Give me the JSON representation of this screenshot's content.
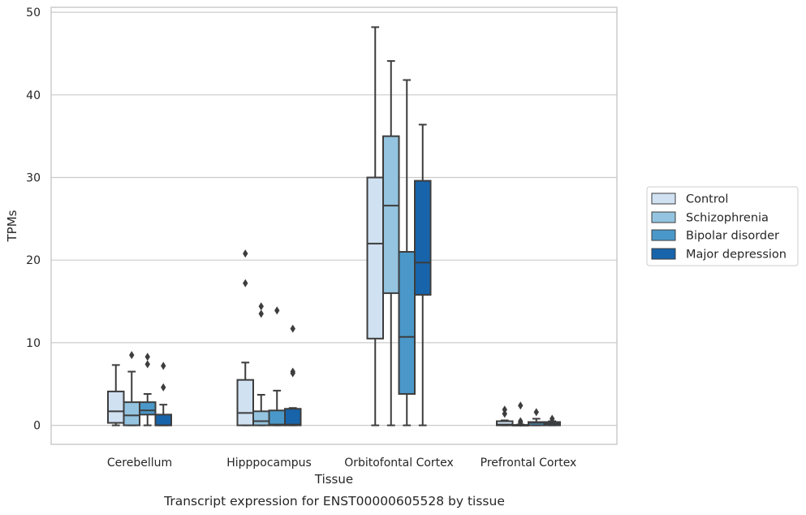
{
  "chart_data": {
    "type": "box",
    "caption": "Transcript expression for ENST00000605528 by tissue",
    "xlabel": "Tissue",
    "ylabel": "TPMs",
    "ylim": [
      -2.3,
      50.6
    ],
    "yticks": [
      0,
      10,
      20,
      30,
      40,
      50
    ],
    "grid": "horizontal",
    "legend_position": "right",
    "categories": [
      "Cerebellum",
      "Hipppocampus",
      "Orbitofontal Cortex",
      "Prefrontal Cortex"
    ],
    "series": [
      {
        "name": "Control",
        "color": "#d0e1f2",
        "boxes": [
          {
            "whislo": 0.0,
            "q1": 0.3,
            "med": 1.7,
            "q3": 4.1,
            "whishi": 7.3,
            "fliers": []
          },
          {
            "whislo": 0.0,
            "q1": 0.0,
            "med": 1.5,
            "q3": 5.5,
            "whishi": 7.6,
            "fliers": [
              17.2,
              20.8
            ]
          },
          {
            "whislo": 0.0,
            "q1": 10.5,
            "med": 22.0,
            "q3": 30.0,
            "whishi": 48.2,
            "fliers": []
          },
          {
            "whislo": 0.0,
            "q1": 0.0,
            "med": 0.1,
            "q3": 0.5,
            "whishi": 0.6,
            "fliers": [
              1.4,
              1.9
            ]
          }
        ]
      },
      {
        "name": "Schizophrenia",
        "color": "#94c4df",
        "boxes": [
          {
            "whislo": 0.0,
            "q1": 0.0,
            "med": 1.2,
            "q3": 2.8,
            "whishi": 6.5,
            "fliers": [
              8.5
            ]
          },
          {
            "whislo": 0.0,
            "q1": 0.0,
            "med": 0.5,
            "q3": 1.7,
            "whishi": 3.7,
            "fliers": [
              13.5,
              14.4
            ]
          },
          {
            "whislo": 0.0,
            "q1": 16.0,
            "med": 26.6,
            "q3": 35.0,
            "whishi": 44.1,
            "fliers": []
          },
          {
            "whislo": 0.0,
            "q1": 0.0,
            "med": 0.0,
            "q3": 0.05,
            "whishi": 0.1,
            "fliers": [
              0.3,
              0.5,
              2.4
            ]
          }
        ]
      },
      {
        "name": "Bipolar disorder",
        "color": "#4a98c9",
        "boxes": [
          {
            "whislo": 0.0,
            "q1": 1.3,
            "med": 1.8,
            "q3": 2.8,
            "whishi": 3.8,
            "fliers": [
              7.4,
              8.3
            ]
          },
          {
            "whislo": 0.0,
            "q1": 0.0,
            "med": 0.1,
            "q3": 1.8,
            "whishi": 4.2,
            "fliers": [
              13.9
            ]
          },
          {
            "whislo": 0.0,
            "q1": 3.8,
            "med": 10.7,
            "q3": 21.0,
            "whishi": 41.8,
            "fliers": []
          },
          {
            "whislo": 0.0,
            "q1": 0.0,
            "med": 0.3,
            "q3": 0.4,
            "whishi": 0.8,
            "fliers": [
              1.6
            ]
          }
        ]
      },
      {
        "name": "Major depression",
        "color": "#1764ab",
        "boxes": [
          {
            "whislo": 0.0,
            "q1": 0.0,
            "med": 0.0,
            "q3": 1.3,
            "whishi": 2.5,
            "fliers": [
              4.6,
              7.2
            ]
          },
          {
            "whislo": 0.0,
            "q1": 0.0,
            "med": 0.1,
            "q3": 2.0,
            "whishi": 2.1,
            "fliers": [
              6.3,
              6.5,
              11.7
            ]
          },
          {
            "whislo": 0.0,
            "q1": 15.8,
            "med": 19.7,
            "q3": 29.6,
            "whishi": 36.4,
            "fliers": []
          },
          {
            "whislo": 0.0,
            "q1": 0.0,
            "med": 0.2,
            "q3": 0.4,
            "whishi": 0.5,
            "fliers": [
              0.8
            ]
          }
        ]
      }
    ]
  }
}
